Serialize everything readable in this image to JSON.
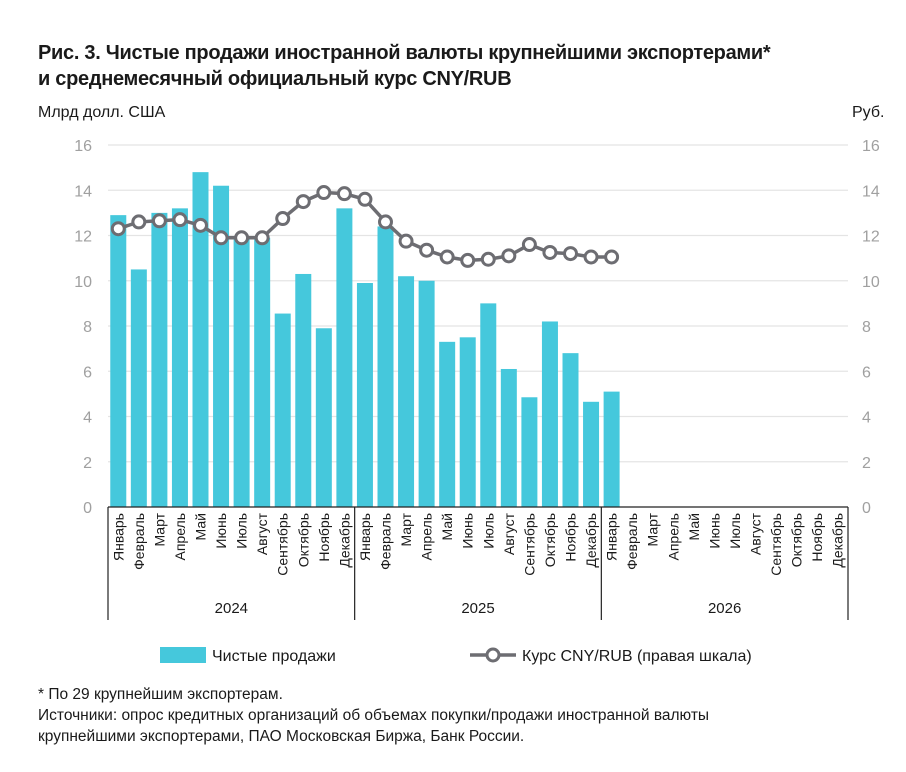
{
  "chart_data": {
    "type": "bar+line",
    "title_line1": "Рис. 3. Чистые продажи иностранной валюты крупнейшими экспортерами*",
    "title_line2": "и среднемесячный официальный курс CNY/RUB",
    "ylabel_left": "Млрд долл. США",
    "ylabel_right": "Руб.",
    "ylim_left": [
      0,
      16
    ],
    "ylim_right": [
      0,
      16
    ],
    "yticks": [
      "0",
      "2",
      "4",
      "6",
      "8",
      "10",
      "12",
      "14",
      "16"
    ],
    "grid": true,
    "months": [
      "Январь",
      "Февраль",
      "Март",
      "Апрель",
      "Май",
      "Июнь",
      "Июль",
      "Август",
      "Сентябрь",
      "Октябрь",
      "Ноябрь",
      "Декабрь"
    ],
    "years": [
      "2024",
      "2025",
      "2026"
    ],
    "legend_position": "bottom",
    "series": [
      {
        "name": "Чистые продажи",
        "type": "bar",
        "axis": "left",
        "color": "#45c8dc",
        "values": [
          12.9,
          10.5,
          13.0,
          13.2,
          14.8,
          14.2,
          11.9,
          11.9,
          8.55,
          10.3,
          7.9,
          13.2,
          9.9,
          12.4,
          10.2,
          10.0,
          7.3,
          7.5,
          9.0,
          6.1,
          4.85,
          8.2,
          6.8,
          4.65,
          5.1
        ]
      },
      {
        "name": "Курс CNY/RUB (правая шкала)",
        "type": "line",
        "axis": "right",
        "color": "#6d6d72",
        "values": [
          12.3,
          12.6,
          12.65,
          12.7,
          12.45,
          11.9,
          11.9,
          11.9,
          12.75,
          13.5,
          13.9,
          13.85,
          13.6,
          12.6,
          11.75,
          11.35,
          11.05,
          10.9,
          10.95,
          11.1,
          11.6,
          11.25,
          11.2,
          11.05,
          11.05
        ]
      }
    ]
  },
  "notes": {
    "footnote": "* По 29 крупнейшим экспортерам.",
    "source_line1": "Источники: опрос кредитных организаций об объемах покупки/продажи иностранной валюты",
    "source_line2": "крупнейшими экспортерами, ПАО Московская Биржа, Банк России."
  }
}
